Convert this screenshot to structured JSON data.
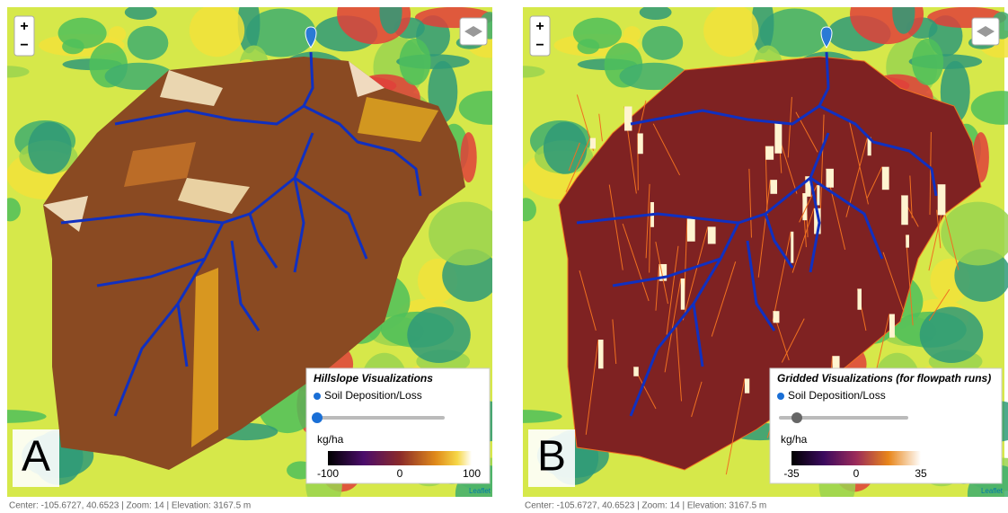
{
  "panels": [
    {
      "letter": "A",
      "zoom_in": "+",
      "zoom_out": "−",
      "attribution": "Leaflet",
      "status": "Center: -105.6727, 40.6523 | Zoom: 14 | Elevation: 3167.5 m",
      "legend": {
        "title": "Hillslope Visualizations",
        "option": "Soil Deposition/Loss",
        "unit": "kg/ha",
        "ticks": [
          -100,
          0,
          100
        ]
      }
    },
    {
      "letter": "B",
      "zoom_in": "+",
      "zoom_out": "−",
      "attribution": "Leaflet",
      "status": "Center: -105.6727, 40.6523 | Zoom: 14 | Elevation: 3167.5 m",
      "legend": {
        "title": "Gridded Visualizations (for flowpath runs)",
        "option": "Soil Deposition/Loss",
        "unit": "kg/ha",
        "ticks": [
          -35,
          0,
          35
        ]
      }
    }
  ]
}
